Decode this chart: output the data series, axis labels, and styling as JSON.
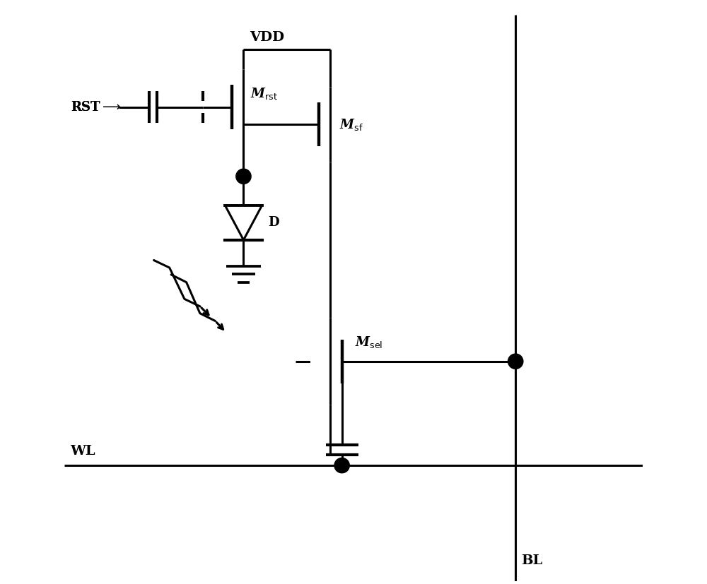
{
  "bg_color": "#ffffff",
  "line_color": "#000000",
  "lw": 2.2,
  "fig_width": 10.0,
  "fig_height": 8.27,
  "dpi": 100,
  "VDD_label": "VDD",
  "RST_label": "RST",
  "Mrst_label": "Mrst",
  "Msf_label": "Msf",
  "Msel_label": "Msel",
  "D_label": "D",
  "WL_label": "WL",
  "BL_label": "BL"
}
